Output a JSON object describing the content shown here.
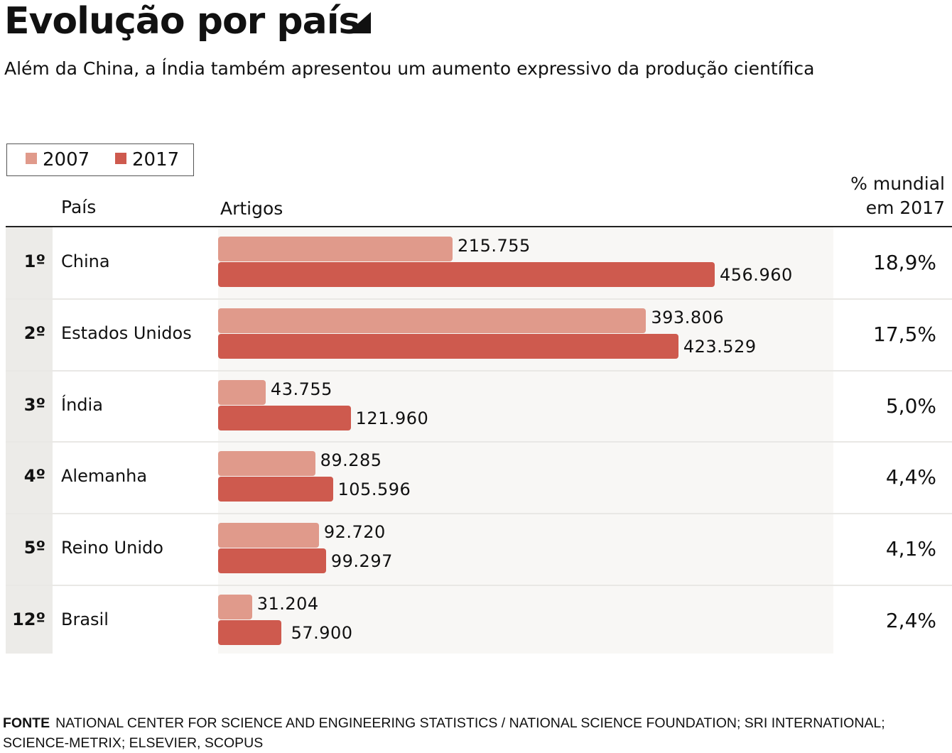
{
  "title": "Evolução por país",
  "subtitle": "Além da China, a Índia também apresentou um aumento expressivo da produção científica",
  "legend": [
    {
      "label": "2007",
      "color": "#e09a8b"
    },
    {
      "label": "2017",
      "color": "#ce5a4e"
    }
  ],
  "headers": {
    "country": "País",
    "articles": "Artigos",
    "share_line1": "% mundial",
    "share_line2": "em 2017"
  },
  "source": {
    "label": "FONTE",
    "text": "NATIONAL CENTER FOR SCIENCE AND ENGINEERING STATISTICS / NATIONAL SCIENCE FOUNDATION; SRI INTERNATIONAL; SCIENCE-METRIX; ELSEVIER, SCOPUS"
  },
  "chart_data": {
    "type": "bar",
    "orientation": "horizontal",
    "title": "Evolução por país",
    "subtitle": "Além da China, a Índia também apresentou um aumento expressivo da produção científica",
    "xlabel": "Artigos",
    "ylabel": "País",
    "legend_position": "top-left",
    "grid": false,
    "xlim": [
      0,
      456960
    ],
    "categories": [
      "China",
      "Estados Unidos",
      "Índia",
      "Alemanha",
      "Reino Unido",
      "Brasil"
    ],
    "ranks": [
      "1º",
      "2º",
      "3º",
      "4º",
      "5º",
      "12º"
    ],
    "series": [
      {
        "name": "2007",
        "color": "#e09a8b",
        "values": [
          215755,
          393806,
          43755,
          89285,
          92720,
          31204
        ],
        "labels": [
          "215.755",
          "393.806",
          "43.755",
          "89.285",
          "92.720",
          "31.204"
        ]
      },
      {
        "name": "2017",
        "color": "#ce5a4e",
        "values": [
          456960,
          423529,
          121960,
          105596,
          99297,
          57900
        ],
        "labels": [
          "456.960",
          "423.529",
          "121.960",
          "105.596",
          "99.297",
          "57.900"
        ]
      }
    ],
    "world_share_2017": [
      "18,9%",
      "17,5%",
      "5,0%",
      "4,4%",
      "4,1%",
      "2,4%"
    ],
    "world_share_2017_values": [
      18.9,
      17.5,
      5.0,
      4.4,
      4.1,
      2.4
    ]
  }
}
